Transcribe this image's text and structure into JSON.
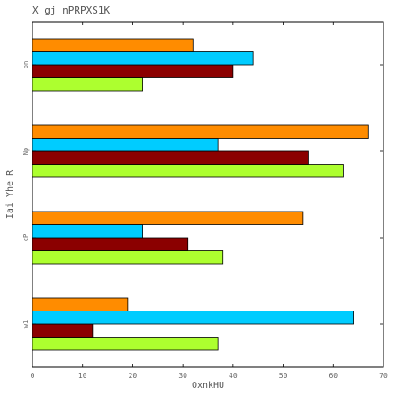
{
  "chart_data": {
    "type": "bar",
    "orientation": "horizontal",
    "title": "X gj nPRPXS1K",
    "xlabel": "OxnkHU",
    "ylabel": "Iai Yhe R",
    "categories": [
      "w1",
      "cP",
      "Np",
      "pn"
    ],
    "xlim": [
      0,
      70
    ],
    "xticks": [
      "0",
      "10",
      "20",
      "30",
      "40",
      "50",
      "60",
      "70"
    ],
    "grid": false,
    "series": [
      {
        "color": "#adff2f",
        "values": [
          37,
          38,
          62,
          22
        ]
      },
      {
        "color": "#8b0000",
        "values": [
          12,
          31,
          55,
          40
        ]
      },
      {
        "color": "#00ccff",
        "values": [
          64,
          22,
          37,
          44
        ]
      },
      {
        "color": "#ff8c00",
        "values": [
          19,
          54,
          67,
          32
        ]
      }
    ]
  }
}
